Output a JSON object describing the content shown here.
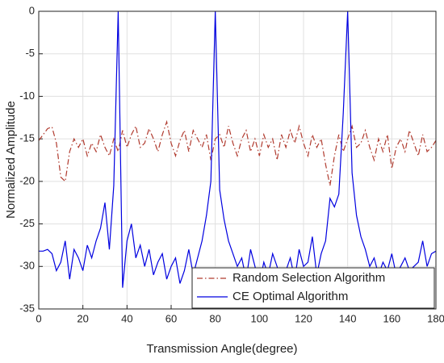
{
  "chart_data": {
    "type": "line",
    "xlabel": "Transmission Angle(degree)",
    "ylabel": "Normalized Amplitude",
    "x": [
      0,
      2,
      4,
      6,
      8,
      10,
      12,
      14,
      16,
      18,
      20,
      22,
      24,
      26,
      28,
      30,
      32,
      34,
      36,
      38,
      40,
      42,
      44,
      46,
      48,
      50,
      52,
      54,
      56,
      58,
      60,
      62,
      64,
      66,
      68,
      70,
      72,
      74,
      76,
      78,
      80,
      82,
      84,
      86,
      88,
      90,
      92,
      94,
      96,
      98,
      100,
      102,
      104,
      106,
      108,
      110,
      112,
      114,
      116,
      118,
      120,
      122,
      124,
      126,
      128,
      130,
      132,
      134,
      136,
      138,
      140,
      142,
      144,
      146,
      148,
      150,
      152,
      154,
      156,
      158,
      160,
      162,
      164,
      166,
      168,
      170,
      172,
      174,
      176,
      178,
      180
    ],
    "series": [
      {
        "name": "Random Selection Algorithm",
        "color": "#b03a2e",
        "dash": "dashdot",
        "values": [
          -15.2,
          -14.5,
          -13.8,
          -13.6,
          -15.5,
          -19.5,
          -20,
          -16.5,
          -15,
          -16,
          -15,
          -17,
          -15.5,
          -16.5,
          -14.5,
          -16,
          -17,
          -15,
          -16.5,
          -14,
          -16,
          -14.5,
          -13.5,
          -16,
          -15.5,
          -13.8,
          -15,
          -16.5,
          -14.5,
          -13,
          -15.5,
          -17,
          -15.2,
          -14,
          -16.5,
          -14,
          -15,
          -16,
          -14.5,
          -17.5,
          -15,
          -14.5,
          -16,
          -13.5,
          -15.5,
          -17,
          -15,
          -14,
          -16.5,
          -15,
          -17,
          -14.5,
          -16,
          -15,
          -17.5,
          -14.5,
          -16,
          -14,
          -15.5,
          -13.5,
          -15.5,
          -17,
          -14.5,
          -16,
          -15,
          -18,
          -20.5,
          -17,
          -14.5,
          -16.5,
          -15,
          -13.5,
          -16,
          -15.5,
          -14,
          -16,
          -17.5,
          -15,
          -16.5,
          -14.5,
          -18.5,
          -16,
          -15,
          -16.5,
          -14,
          -15.5,
          -17,
          -14.5,
          -16.5,
          -16,
          -15.2
        ]
      },
      {
        "name": "CE Optimal Algorithm",
        "color": "#0000e0",
        "dash": "solid",
        "values": [
          -28.2,
          -28.2,
          -28,
          -28.5,
          -30.5,
          -29.5,
          -27,
          -31.5,
          -28,
          -29,
          -30.5,
          -27.5,
          -29,
          -27,
          -25.5,
          -22.5,
          -28,
          -20.5,
          0,
          -32.5,
          -27,
          -25,
          -29,
          -27.5,
          -30,
          -28,
          -31,
          -29.5,
          -28.5,
          -31.5,
          -30,
          -29,
          -32,
          -30.5,
          -28,
          -31,
          -29,
          -27,
          -24,
          -20,
          0,
          -21,
          -24.5,
          -27,
          -28.5,
          -30,
          -29,
          -31.5,
          -28,
          -30,
          -32,
          -29.5,
          -31,
          -28.5,
          -30,
          -32,
          -30.5,
          -29,
          -31.5,
          -28,
          -30,
          -29.5,
          -26.5,
          -31,
          -28.5,
          -27,
          -22,
          -23,
          -21.5,
          -12,
          0,
          -19,
          -24,
          -26.5,
          -28,
          -30,
          -29,
          -31,
          -29.5,
          -30.5,
          -28.5,
          -31,
          -30,
          -29,
          -30.5,
          -30,
          -29.5,
          -27,
          -30,
          -28.5,
          -28.2
        ]
      }
    ],
    "xlim": [
      0,
      180
    ],
    "xticks": [
      0,
      20,
      40,
      60,
      80,
      100,
      120,
      140,
      160,
      180
    ],
    "ylim": [
      -35,
      0
    ],
    "yticks": [
      -35,
      -30,
      -25,
      -20,
      -15,
      -10,
      -5,
      0
    ],
    "grid": true,
    "legend": "lower right"
  }
}
